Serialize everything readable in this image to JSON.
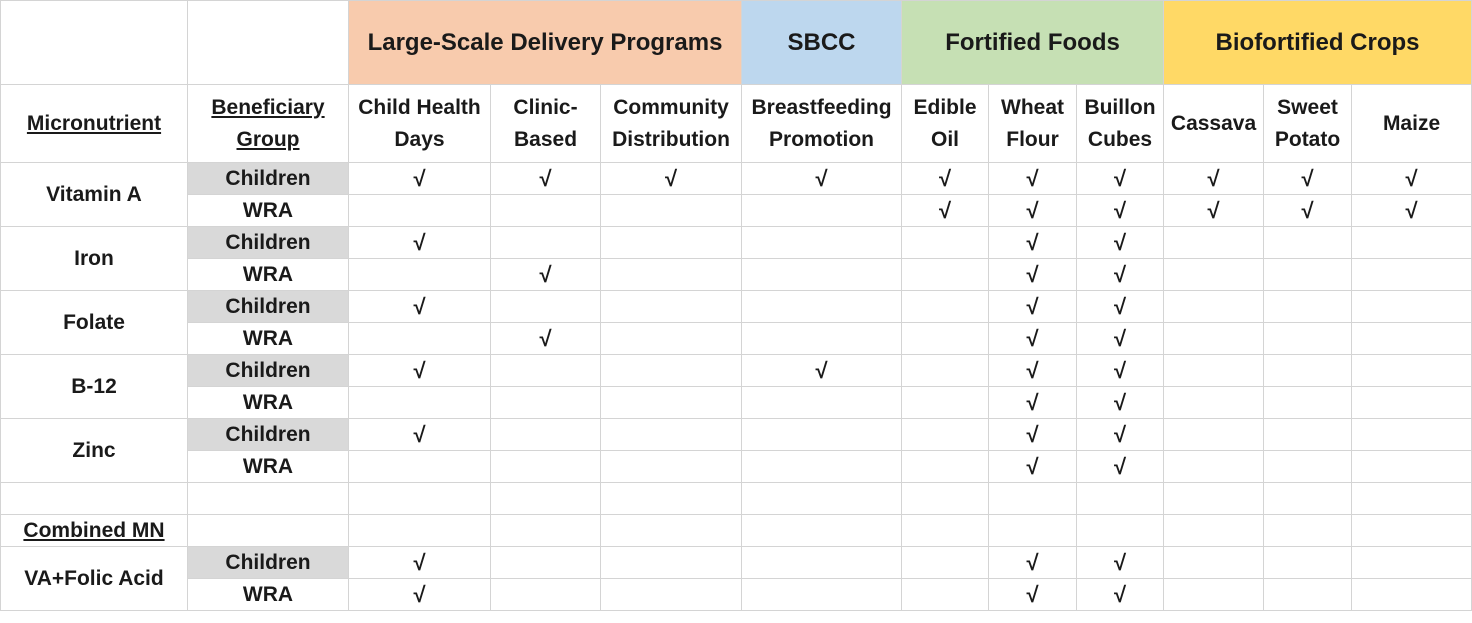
{
  "group_headers": {
    "large_scale": "Large-Scale Delivery Programs",
    "sbcc": "SBCC",
    "fortified": "Fortified Foods",
    "biofortified": "Biofortified Crops"
  },
  "headers": {
    "micronutrient": "Micronutrient",
    "beneficiary_line1": "Beneficiary",
    "beneficiary_line2": "Group",
    "cols": [
      [
        "Child Health",
        "Days"
      ],
      [
        "Clinic-",
        "Based"
      ],
      [
        "Community",
        "Distribution"
      ],
      [
        "Breastfeeding",
        "Promotion"
      ],
      [
        "Edible",
        "Oil"
      ],
      [
        "Wheat",
        "Flour"
      ],
      [
        "Buillon",
        "Cubes"
      ],
      [
        "Cassava",
        ""
      ],
      [
        "Sweet",
        "Potato"
      ],
      [
        "Maize",
        ""
      ]
    ]
  },
  "section_label": "Combined MN",
  "micronutrients": [
    {
      "name": "Vitamin A",
      "rows": [
        {
          "group": "Children",
          "marks": [
            "√",
            "√",
            "√",
            "√",
            "√",
            "√",
            "√",
            "√",
            "√",
            "√"
          ]
        },
        {
          "group": "WRA",
          "marks": [
            "",
            "",
            "",
            "",
            "√",
            "√",
            "√",
            "√",
            "√",
            "√"
          ]
        }
      ]
    },
    {
      "name": "Iron",
      "rows": [
        {
          "group": "Children",
          "marks": [
            "√",
            "",
            "",
            "",
            "",
            "√",
            "√",
            "",
            "",
            ""
          ]
        },
        {
          "group": "WRA",
          "marks": [
            "",
            "√",
            "",
            "",
            "",
            "√",
            "√",
            "",
            "",
            ""
          ]
        }
      ]
    },
    {
      "name": "Folate",
      "rows": [
        {
          "group": "Children",
          "marks": [
            "√",
            "",
            "",
            "",
            "",
            "√",
            "√",
            "",
            "",
            ""
          ]
        },
        {
          "group": "WRA",
          "marks": [
            "",
            "√",
            "",
            "",
            "",
            "√",
            "√",
            "",
            "",
            ""
          ]
        }
      ]
    },
    {
      "name": "B-12",
      "rows": [
        {
          "group": "Children",
          "marks": [
            "√",
            "",
            "",
            "√",
            "",
            "√",
            "√",
            "",
            "",
            ""
          ]
        },
        {
          "group": "WRA",
          "marks": [
            "",
            "",
            "",
            "",
            "",
            "√",
            "√",
            "",
            "",
            ""
          ]
        }
      ]
    },
    {
      "name": "Zinc",
      "rows": [
        {
          "group": "Children",
          "marks": [
            "√",
            "",
            "",
            "",
            "",
            "√",
            "√",
            "",
            "",
            ""
          ]
        },
        {
          "group": "WRA",
          "marks": [
            "",
            "",
            "",
            "",
            "",
            "√",
            "√",
            "",
            "",
            ""
          ]
        }
      ]
    }
  ],
  "combined": [
    {
      "name": "VA+Folic Acid",
      "rows": [
        {
          "group": "Children",
          "marks": [
            "√",
            "",
            "",
            "",
            "",
            "√",
            "√",
            "",
            "",
            ""
          ]
        },
        {
          "group": "WRA",
          "marks": [
            "√",
            "",
            "",
            "",
            "",
            "√",
            "√",
            "",
            "",
            ""
          ]
        }
      ]
    }
  ]
}
